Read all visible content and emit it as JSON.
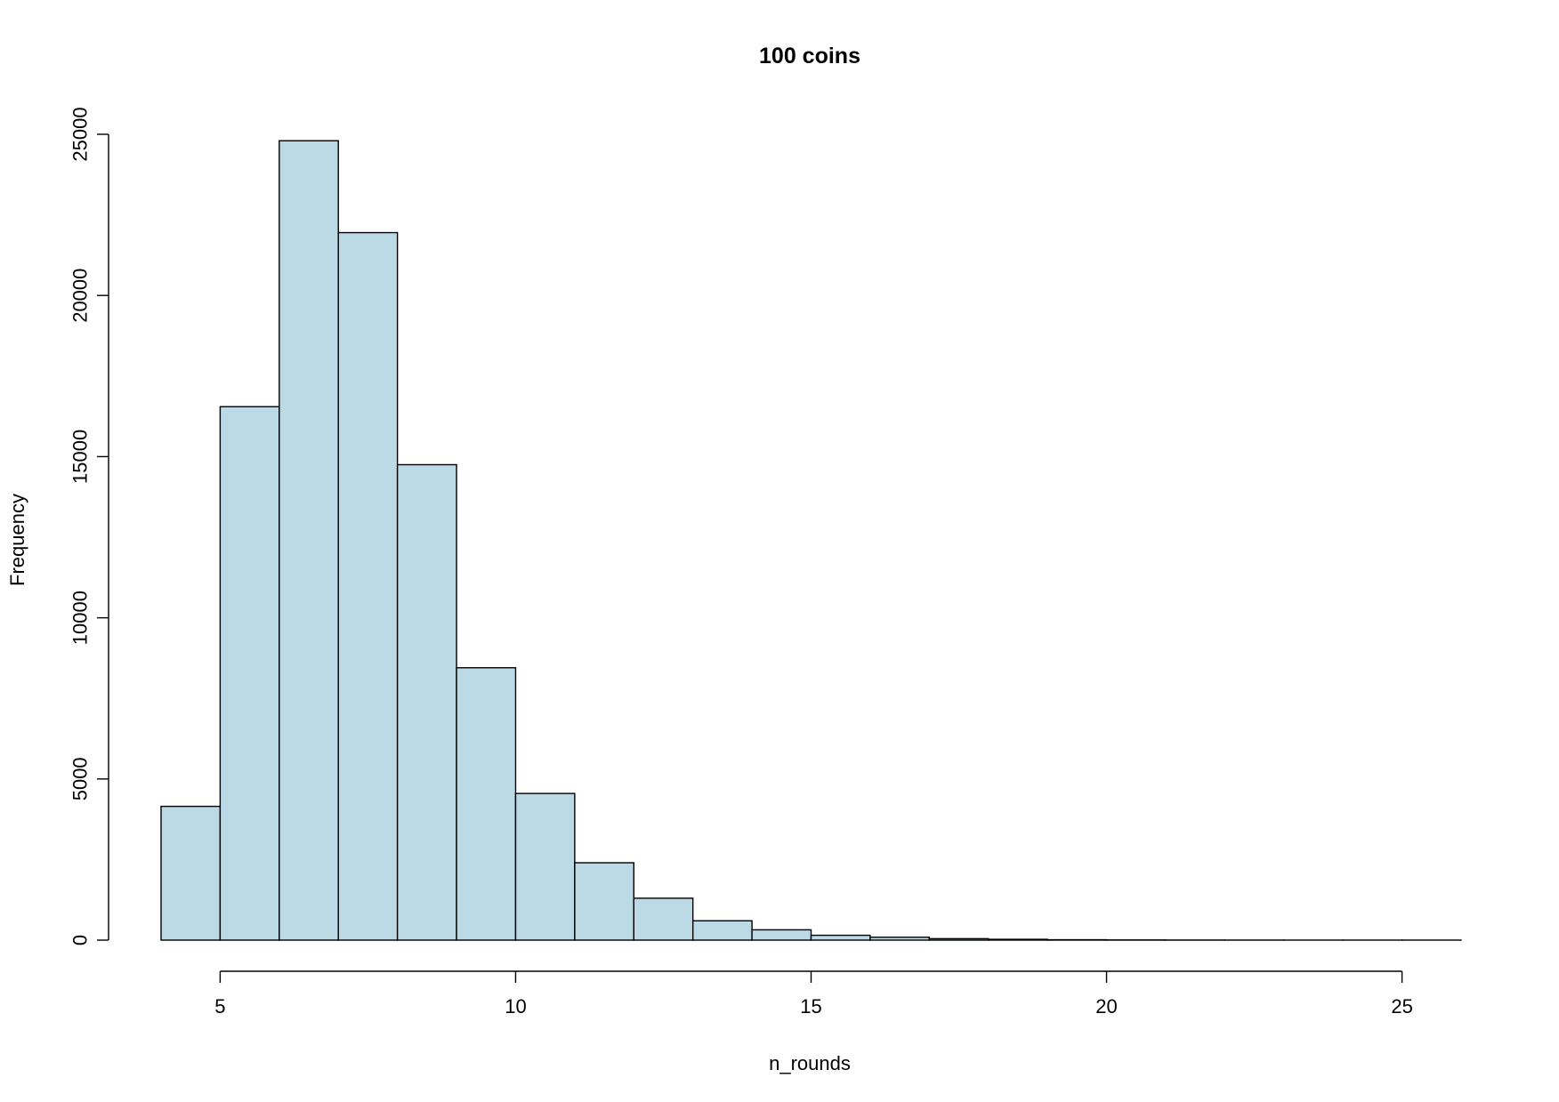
{
  "chart_data": {
    "type": "histogram",
    "title": "100 coins",
    "xlabel": "n_rounds",
    "ylabel": "Frequency",
    "bar_color": "#bcd9e6",
    "edge_color": "#000000",
    "xlim": [
      4,
      26
    ],
    "ylim": [
      0,
      25000
    ],
    "xticks": [
      5,
      10,
      15,
      20,
      25
    ],
    "yticks": [
      0,
      5000,
      10000,
      15000,
      20000,
      25000
    ],
    "bins": [
      {
        "x0": 4,
        "x1": 5,
        "count": 4150
      },
      {
        "x0": 5,
        "x1": 6,
        "count": 16550
      },
      {
        "x0": 6,
        "x1": 7,
        "count": 24800
      },
      {
        "x0": 7,
        "x1": 8,
        "count": 21950
      },
      {
        "x0": 8,
        "x1": 9,
        "count": 14750
      },
      {
        "x0": 9,
        "x1": 10,
        "count": 8450
      },
      {
        "x0": 10,
        "x1": 11,
        "count": 4550
      },
      {
        "x0": 11,
        "x1": 12,
        "count": 2400
      },
      {
        "x0": 12,
        "x1": 13,
        "count": 1300
      },
      {
        "x0": 13,
        "x1": 14,
        "count": 600
      },
      {
        "x0": 14,
        "x1": 15,
        "count": 320
      },
      {
        "x0": 15,
        "x1": 16,
        "count": 150
      },
      {
        "x0": 16,
        "x1": 17,
        "count": 90
      },
      {
        "x0": 17,
        "x1": 18,
        "count": 45
      },
      {
        "x0": 18,
        "x1": 19,
        "count": 25
      },
      {
        "x0": 19,
        "x1": 20,
        "count": 12
      },
      {
        "x0": 20,
        "x1": 21,
        "count": 6
      },
      {
        "x0": 21,
        "x1": 22,
        "count": 3
      },
      {
        "x0": 22,
        "x1": 23,
        "count": 2
      },
      {
        "x0": 23,
        "x1": 24,
        "count": 1
      },
      {
        "x0": 24,
        "x1": 25,
        "count": 1
      },
      {
        "x0": 25,
        "x1": 26,
        "count": 1
      }
    ]
  }
}
